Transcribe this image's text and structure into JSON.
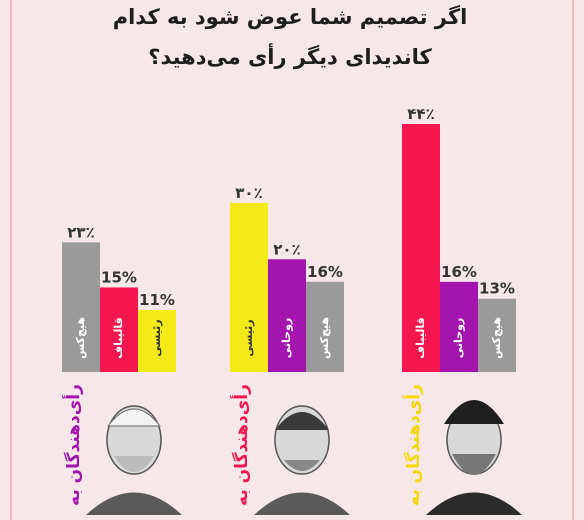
{
  "title": {
    "line1": "اگر تصمیم شما عوض شود به کدام",
    "line2": "کاندیدای دیگر رأی می‌دهید؟"
  },
  "colors": {
    "gray": "#9a9a9a",
    "red": "#f4174f",
    "yellow": "#f5ea19",
    "purple": "#a414ae"
  },
  "chart_data": [
    {
      "type": "bar",
      "group_label": "رأی‌دهندگان به",
      "group_label_color": "#a414ae",
      "portrait": "rouhani-portrait",
      "categories": [
        "هیچ‌کس",
        "قالیباف",
        "رئیسی"
      ],
      "values": [
        23,
        15,
        11
      ],
      "value_labels": [
        "۲۳٪",
        "15%",
        "11%"
      ],
      "colors": [
        "#9a9a9a",
        "#f4174f",
        "#f5ea19"
      ],
      "ylim": [
        0,
        44
      ]
    },
    {
      "type": "bar",
      "group_label": "رأی‌دهندگان به",
      "group_label_color": "#f4174f",
      "portrait": "ghalibaf-portrait",
      "categories": [
        "رئیسی",
        "روحانی",
        "هیچ‌کس"
      ],
      "values": [
        30,
        20,
        16
      ],
      "value_labels": [
        "۳۰٪",
        "۲۰٪",
        "16%"
      ],
      "colors": [
        "#f5ea19",
        "#a414ae",
        "#9a9a9a"
      ],
      "ylim": [
        0,
        44
      ]
    },
    {
      "type": "bar",
      "group_label": "رأی‌دهندگان به",
      "group_label_color": "#f5d800",
      "portrait": "raisi-portrait",
      "categories": [
        "قالیباف",
        "روحانی",
        "هیچ‌کس"
      ],
      "values": [
        44,
        16,
        13
      ],
      "value_labels": [
        "۴۴٪",
        "16%",
        "13%"
      ],
      "colors": [
        "#f4174f",
        "#a414ae",
        "#9a9a9a"
      ],
      "ylim": [
        0,
        44
      ]
    }
  ]
}
